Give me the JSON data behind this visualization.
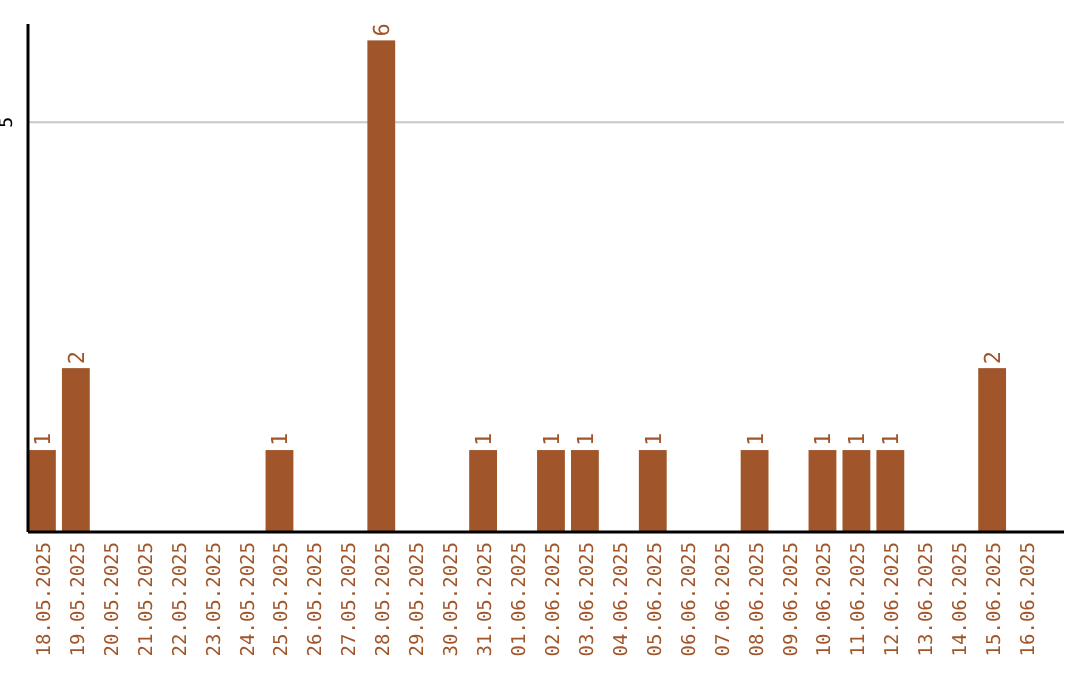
{
  "chart_data": {
    "type": "bar",
    "categories": [
      "18.05.2025",
      "19.05.2025",
      "20.05.2025",
      "21.05.2025",
      "22.05.2025",
      "23.05.2025",
      "24.05.2025",
      "25.05.2025",
      "26.05.2025",
      "27.05.2025",
      "28.05.2025",
      "29.05.2025",
      "30.05.2025",
      "31.05.2025",
      "01.06.2025",
      "02.06.2025",
      "03.06.2025",
      "04.06.2025",
      "05.06.2025",
      "06.06.2025",
      "07.06.2025",
      "08.06.2025",
      "09.06.2025",
      "10.06.2025",
      "11.06.2025",
      "12.06.2025",
      "13.06.2025",
      "14.06.2025",
      "15.06.2025",
      "16.06.2025"
    ],
    "values": [
      1,
      2,
      0,
      0,
      0,
      0,
      0,
      1,
      0,
      0,
      6,
      0,
      0,
      1,
      0,
      1,
      1,
      0,
      1,
      0,
      0,
      1,
      0,
      1,
      1,
      1,
      0,
      0,
      2,
      0
    ],
    "value_labels": [
      "1",
      "2",
      null,
      null,
      null,
      null,
      null,
      "1",
      null,
      null,
      "6",
      null,
      null,
      "1",
      null,
      "1",
      "1",
      null,
      "1",
      null,
      null,
      "1",
      null,
      "1",
      "1",
      "1",
      null,
      null,
      "2",
      null
    ],
    "color": "#a0562a",
    "ylim": [
      0,
      6.2
    ],
    "yticks": [
      5
    ],
    "grid": "y"
  }
}
